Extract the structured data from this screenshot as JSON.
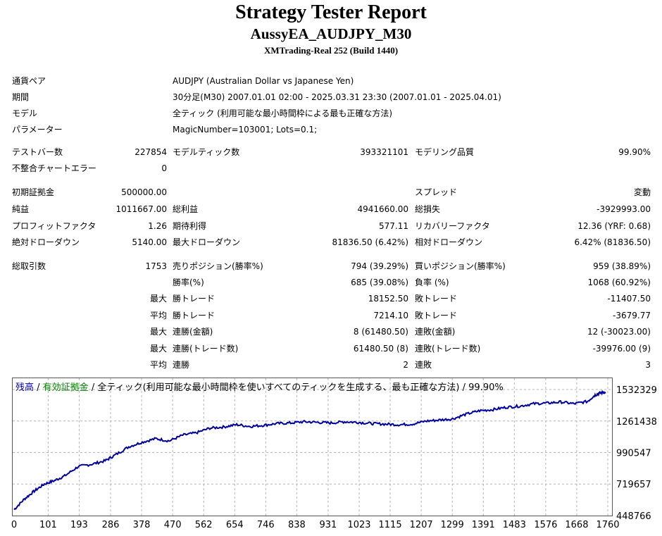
{
  "report": {
    "title": "Strategy Tester Report",
    "subtitle": "AussyEA_AUDJPY_M30",
    "server": "XMTrading-Real 252 (Build 1440)"
  },
  "info": {
    "symbol_label": "通貨ペア",
    "symbol_value": "AUDJPY (Australian Dollar vs Japanese Yen)",
    "period_label": "期間",
    "period_value": "30分足(M30) 2007.01.01 02:00 - 2025.03.31 23:30 (2007.01.01 - 2025.04.01)",
    "model_label": "モデル",
    "model_value": "全ティック (利用可能な最小時間枠による最も正確な方法)",
    "params_label": "パラメーター",
    "params_value": "MagicNumber=103001; Lots=0.1;"
  },
  "stats": {
    "bars_label": "テストバー数",
    "bars_value": "227854",
    "ticks_label": "モデルティック数",
    "ticks_value": "393321101",
    "quality_label": "モデリング品質",
    "quality_value": "99.90%",
    "mismatch_label": "不整合チャートエラー",
    "mismatch_value": "0",
    "deposit_label": "初期証拠金",
    "deposit_value": "500000.00",
    "spread_label": "スプレッド",
    "spread_value": "変動",
    "net_label": "純益",
    "net_value": "1011667.00",
    "gross_profit_label": "総利益",
    "gross_profit_value": "4941660.00",
    "gross_loss_label": "総損失",
    "gross_loss_value": "-3929993.00",
    "pf_label": "プロフィットファクタ",
    "pf_value": "1.26",
    "expected_label": "期待利得",
    "expected_value": "577.11",
    "recovery_label": "リカバリーファクタ",
    "recovery_value": "12.36 (YRF: 0.68)",
    "abs_dd_label": "絶対ドローダウン",
    "abs_dd_value": "5140.00",
    "max_dd_label": "最大ドローダウン",
    "max_dd_value": "81836.50 (6.42%)",
    "rel_dd_label": "相対ドローダウン",
    "rel_dd_value": "6.42% (81836.50)",
    "trades_label": "総取引数",
    "trades_value": "1753",
    "short_label": "売りポジション(勝率%)",
    "short_value": "794 (39.29%)",
    "long_label": "買いポジション(勝率%)",
    "long_value": "959 (38.89%)",
    "win_rate_label": "勝率(%)",
    "win_rate_value": "685 (39.08%)",
    "loss_rate_label": "負率 (%)",
    "loss_rate_value": "1068 (60.92%)",
    "max_word": "最大",
    "avg_word": "平均",
    "largest_win_label": "勝トレード",
    "largest_win_value": "18152.50",
    "largest_loss_label": "敗トレード",
    "largest_loss_value": "-11407.50",
    "avg_win_label": "勝トレード",
    "avg_win_value": "7214.10",
    "avg_loss_label": "敗トレード",
    "avg_loss_value": "-3679.77",
    "consec_wins_label": "連勝(金額)",
    "consec_wins_value": "8 (61480.50)",
    "consec_losses_label": "連敗(金額)",
    "consec_losses_value": "12 (-30023.00)",
    "consec_profit_label": "連勝(トレード数)",
    "consec_profit_value": "61480.50 (8)",
    "consec_loss_label": "連敗(トレード数)",
    "consec_loss_value": "-39976.00 (9)",
    "avg_consec_wins_label": "連勝",
    "avg_consec_wins_value": "2",
    "avg_consec_losses_label": "連敗",
    "avg_consec_losses_value": "3"
  },
  "chart_data": {
    "type": "line",
    "legend": {
      "balance": "残高",
      "sep1": " / ",
      "equity": "有効証拠金",
      "sep2": " / ",
      "model": "全ティック(利用可能な最小時間枠を使いすべてのティックを生成する、最も正確な方法) / 99.90%"
    },
    "colors": {
      "balance": "#0000a0",
      "equity": "#008000",
      "grid": "#b4b4b4"
    },
    "x_ticks": [
      0,
      101,
      193,
      286,
      378,
      470,
      562,
      654,
      746,
      838,
      931,
      1023,
      1115,
      1207,
      1299,
      1391,
      1483,
      1576,
      1668,
      1760
    ],
    "y_ticks": [
      1532329,
      1261438,
      990547,
      719657,
      448766
    ],
    "xlim": [
      0,
      1753
    ],
    "ylim": [
      448766,
      1532329
    ],
    "series": [
      {
        "name": "残高",
        "x": [
          0,
          30,
          60,
          90,
          120,
          150,
          190,
          230,
          270,
          300,
          340,
          380,
          420,
          460,
          500,
          540,
          580,
          620,
          660,
          700,
          740,
          780,
          820,
          860,
          900,
          940,
          980,
          1020,
          1060,
          1100,
          1140,
          1180,
          1220,
          1260,
          1300,
          1340,
          1380,
          1420,
          1460,
          1500,
          1540,
          1580,
          1620,
          1660,
          1700,
          1720,
          1735,
          1753
        ],
        "y": [
          500000,
          590000,
          660000,
          720000,
          750000,
          790000,
          870000,
          890000,
          920000,
          970000,
          1040000,
          1080000,
          1110000,
          1090000,
          1140000,
          1160000,
          1200000,
          1210000,
          1230000,
          1215000,
          1225000,
          1240000,
          1245000,
          1255000,
          1250000,
          1245000,
          1255000,
          1250000,
          1240000,
          1235000,
          1230000,
          1235000,
          1260000,
          1270000,
          1280000,
          1320000,
          1350000,
          1360000,
          1380000,
          1390000,
          1410000,
          1415000,
          1425000,
          1410000,
          1430000,
          1480000,
          1500000,
          1512000
        ]
      }
    ]
  }
}
